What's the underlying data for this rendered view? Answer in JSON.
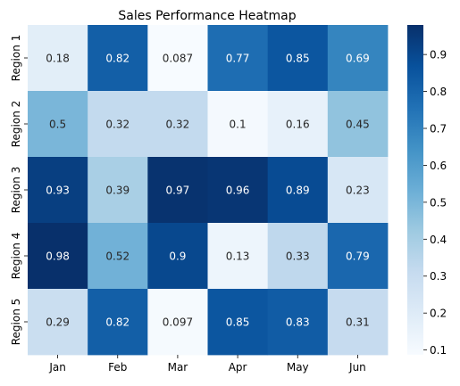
{
  "chart_data": {
    "type": "heatmap",
    "title": "Sales Performance Heatmap",
    "xlabel": "",
    "ylabel": "",
    "x_categories": [
      "Jan",
      "Feb",
      "Mar",
      "Apr",
      "May",
      "Jun"
    ],
    "y_categories": [
      "Region 1",
      "Region 2",
      "Region 3",
      "Region 4",
      "Region 5"
    ],
    "values": [
      [
        0.18,
        0.82,
        0.087,
        0.77,
        0.85,
        0.69
      ],
      [
        0.5,
        0.32,
        0.32,
        0.1,
        0.16,
        0.45
      ],
      [
        0.93,
        0.39,
        0.97,
        0.96,
        0.89,
        0.23
      ],
      [
        0.98,
        0.52,
        0.9,
        0.13,
        0.33,
        0.79
      ],
      [
        0.29,
        0.82,
        0.097,
        0.85,
        0.83,
        0.31
      ]
    ],
    "colormap": "Blues",
    "color_range": [
      0.087,
      0.98
    ],
    "colorbar_ticks": [
      "0.1",
      "0.2",
      "0.3",
      "0.4",
      "0.5",
      "0.6",
      "0.7",
      "0.8",
      "0.9"
    ],
    "annotate": true,
    "grid": false
  }
}
